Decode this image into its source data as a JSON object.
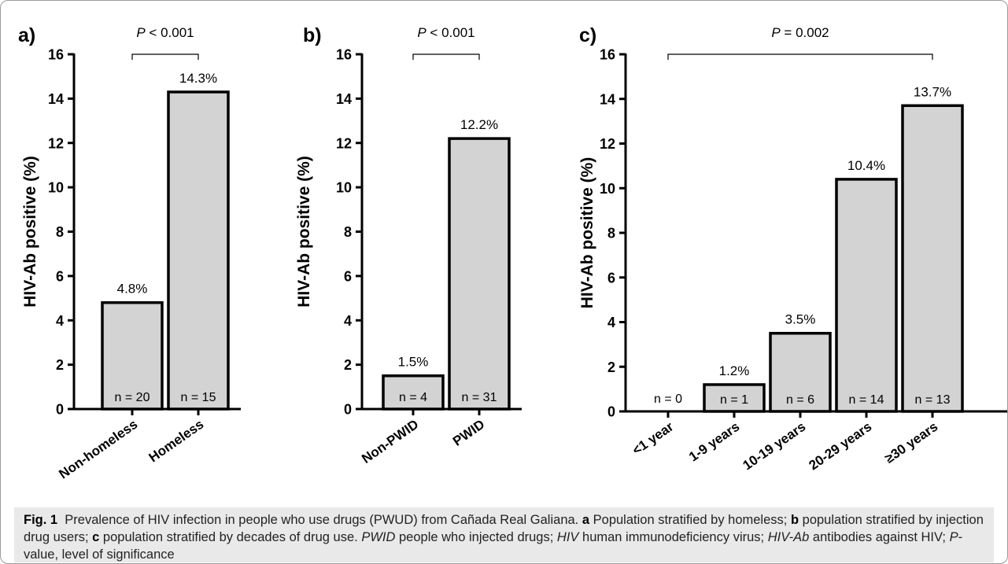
{
  "chart_data": [
    {
      "panel_label": "a)",
      "type": "bar",
      "categories": [
        "Non-homeless",
        "Homeless"
      ],
      "values": [
        4.8,
        14.3
      ],
      "value_labels": [
        "4.8%",
        "14.3%"
      ],
      "counts": [
        "n = 20",
        "n = 15"
      ],
      "ylabel": "HIV-Ab positive (%)",
      "ylim": [
        0,
        16
      ],
      "yticks": [
        0,
        2,
        4,
        6,
        8,
        10,
        12,
        14,
        16
      ],
      "significance": {
        "label": "P",
        "text": " < 0.001"
      },
      "bar_color": "#d3d3d3"
    },
    {
      "panel_label": "b)",
      "type": "bar",
      "categories": [
        "Non-PWID",
        "PWID"
      ],
      "values": [
        1.5,
        12.2
      ],
      "value_labels": [
        "1.5%",
        "12.2%"
      ],
      "counts": [
        "n = 4",
        "n = 31"
      ],
      "ylabel": "HIV-Ab positive (%)",
      "ylim": [
        0,
        16
      ],
      "yticks": [
        0,
        2,
        4,
        6,
        8,
        10,
        12,
        14,
        16
      ],
      "significance": {
        "label": "P",
        "text": " < 0.001"
      },
      "bar_color": "#d3d3d3"
    },
    {
      "panel_label": "c)",
      "type": "bar",
      "categories": [
        "<1 year",
        "1-9 years",
        "10-19 years",
        "20-29 years",
        "≥30 years"
      ],
      "values": [
        0,
        1.2,
        3.5,
        10.4,
        13.7
      ],
      "value_labels": [
        "",
        "1.2%",
        "3.5%",
        "10.4%",
        "13.7%"
      ],
      "counts": [
        "n = 0",
        "n = 1",
        "n = 6",
        "n = 14",
        "n = 13"
      ],
      "ylabel": "HIV-Ab positive (%)",
      "ylim": [
        0,
        16
      ],
      "yticks": [
        0,
        2,
        4,
        6,
        8,
        10,
        12,
        14,
        16
      ],
      "significance": {
        "label": "P",
        "text": " = 0.002"
      },
      "bar_color": "#d3d3d3"
    }
  ],
  "caption": {
    "fig_label": "Fig. 1",
    "text": "Prevalence of HIV infection in people who use drugs (PWUD) from Cañada Real Galiana.",
    "a_label": "a",
    "a_text": "Population stratified by homeless;",
    "b_label": "b",
    "b_text": "population stratified by injection drug users;",
    "c_label": "c",
    "c_text": "population stratified by decades of drug use.",
    "pwid_abbr": "PWID",
    "pwid_def": "people who injected drugs;",
    "hiv_abbr": "HIV",
    "hiv_def": "human immunodeficiency virus;",
    "hivab_abbr": "HIV-Ab",
    "hivab_def": "antibodies against HIV;",
    "p_abbr": "P",
    "p_def": "-value, level of significance"
  }
}
